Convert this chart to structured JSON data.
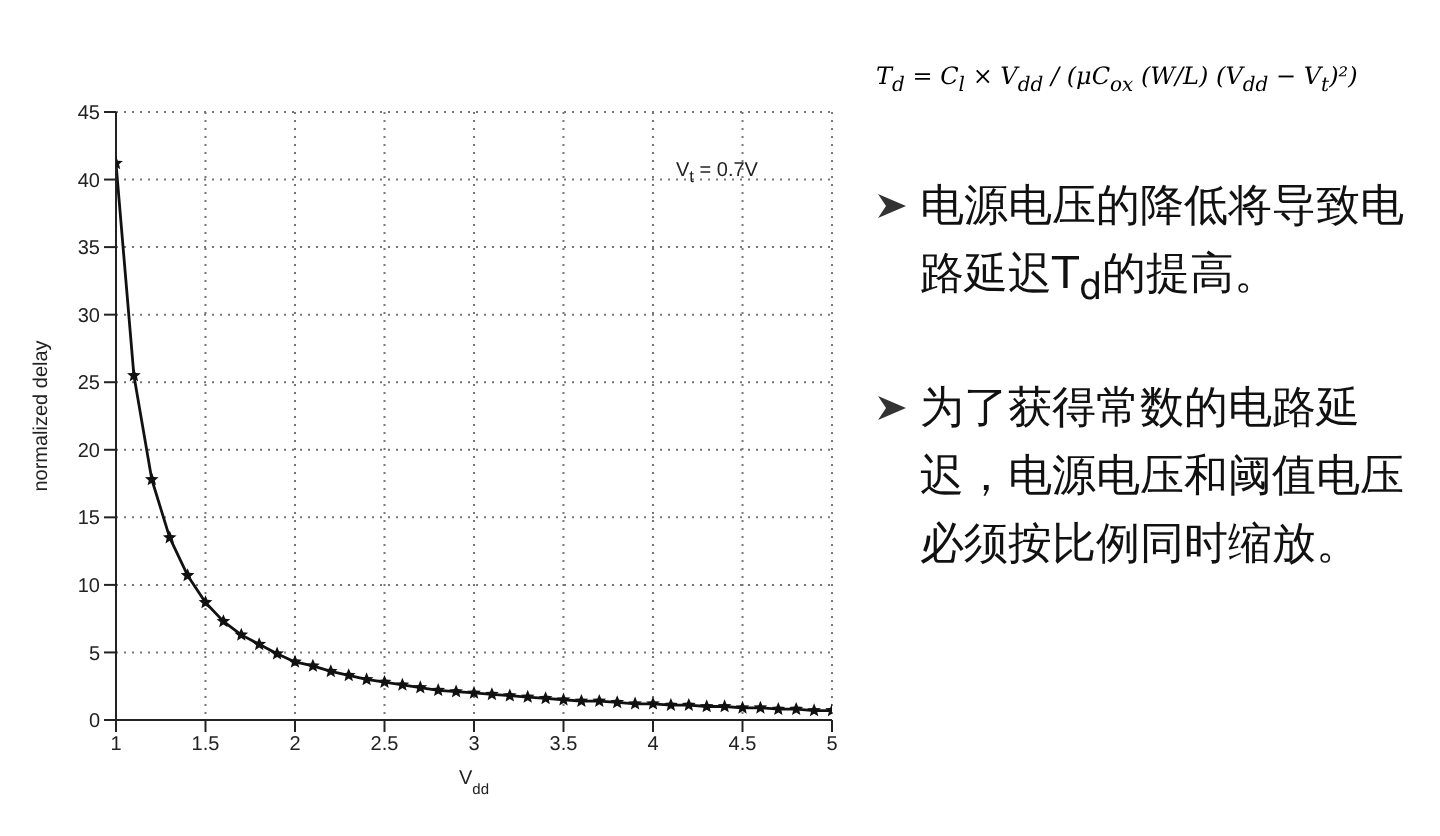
{
  "chart_data": {
    "type": "line",
    "xlabel": "V$_{dd}$",
    "ylabel": "normalized delay",
    "annotations": [
      "V$_{t}$ = 0.7V",
      "T$_{d}$ = C$_{l}$ × V$_{dd}$ / (μC$_{ox}$ (W/L) (V$_{dd}$ − V$_{t}$)²)",
      "电源电压的降低将导致电路延迟T$_{d}$的提高。",
      "为了获得常数的电路延迟，电源电压和阈值电压必须按比例同时缩放。"
    ],
    "x": [
      1,
      1.1,
      1.2,
      1.3,
      1.4,
      1.5,
      1.6,
      1.7,
      1.8,
      1.9,
      2,
      2.1,
      2.2,
      2.3,
      2.4,
      2.5,
      2.6,
      2.7,
      2.8,
      2.9,
      3,
      3.1,
      3.2,
      3.3,
      3.4,
      3.5,
      3.6,
      3.7,
      3.8,
      3.9,
      4,
      4.1,
      4.2,
      4.3,
      4.4,
      4.5,
      4.6,
      4.7,
      4.8,
      4.9,
      5
    ],
    "series": [
      {
        "color": "#111111",
        "values": [
          41.2,
          25.5,
          17.8,
          13.5,
          10.7,
          8.7,
          7.3,
          6.3,
          5.6,
          4.9,
          4.3,
          4.0,
          3.6,
          3.3,
          3.0,
          2.8,
          2.6,
          2.4,
          2.2,
          2.1,
          2.0,
          1.9,
          1.8,
          1.7,
          1.6,
          1.5,
          1.4,
          1.4,
          1.3,
          1.2,
          1.2,
          1.1,
          1.1,
          1.0,
          1.0,
          0.9,
          0.9,
          0.8,
          0.8,
          0.7,
          0.7
        ]
      }
    ],
    "xlim": [
      1,
      5
    ],
    "xticks": [
      1,
      1.5,
      2,
      2.5,
      3,
      3.5,
      4,
      4.5,
      5
    ],
    "ylim": [
      0,
      45
    ],
    "yticks": [
      0,
      5,
      10,
      15,
      20,
      25,
      30,
      35,
      40,
      45
    ],
    "grid": true,
    "marker": "star",
    "line_style": "solid"
  }
}
